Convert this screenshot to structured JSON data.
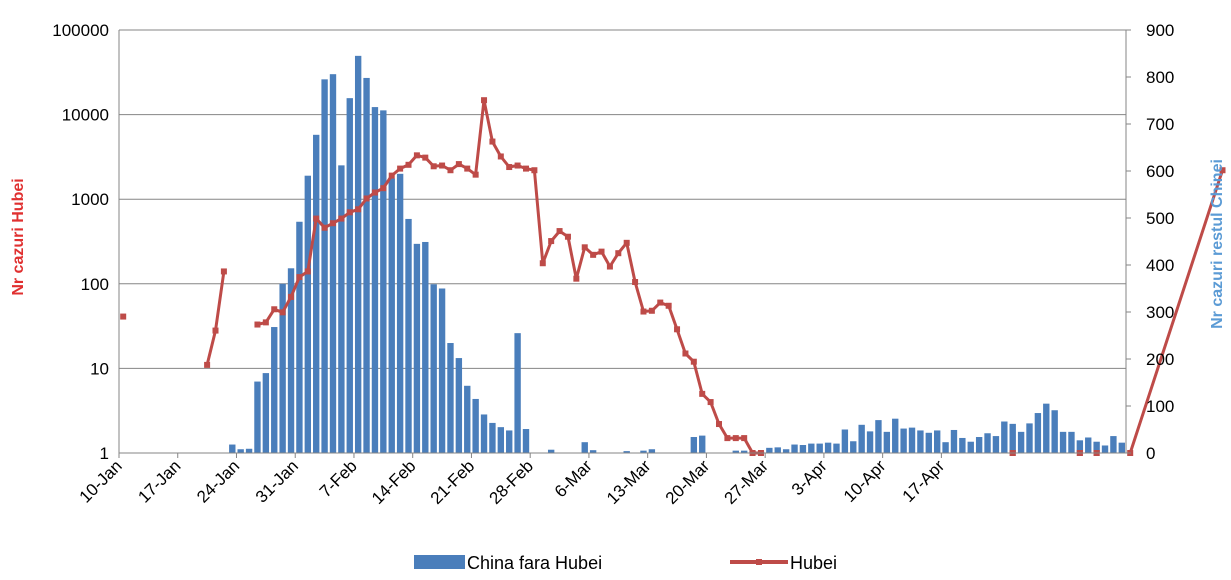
{
  "chart_data": {
    "type": "bar+line",
    "title": "",
    "y_left_label": "Nr cazuri Hubei",
    "y_right_label": "Nr cazuri restul Chinei",
    "y_left_scale": "log",
    "y_left_ticks": [
      "1",
      "10",
      "100",
      "1000",
      "10000",
      "100000"
    ],
    "y_right_ticks": [
      "0",
      "100",
      "200",
      "300",
      "400",
      "500",
      "600",
      "700",
      "800",
      "900"
    ],
    "y_right_lim": [
      0,
      900
    ],
    "x_ticks": [
      "10-Jan",
      "17-Jan",
      "24-Jan",
      "31-Jan",
      "7-Feb",
      "14-Feb",
      "21-Feb",
      "28-Feb",
      "6-Mar",
      "13-Mar",
      "20-Mar",
      "27-Mar",
      "3-Apr",
      "10-Apr",
      "17-Apr"
    ],
    "x_start_label": "10-Jan",
    "grid": "horizontal",
    "legend_position": "bottom",
    "colors": {
      "bars": "#4a7ebb",
      "line": "#be4b48",
      "left_axis_label": "#e03030",
      "right_axis_label": "#5b9bd5"
    },
    "series": [
      {
        "name": "China fara Hubei",
        "type": "bar",
        "axis": "right",
        "values": [
          0,
          0,
          0,
          0,
          0,
          0,
          0,
          0,
          0,
          0,
          0,
          0,
          0,
          18,
          8,
          9,
          152,
          170,
          268,
          360,
          393,
          492,
          590,
          677,
          795,
          806,
          612,
          755,
          845,
          798,
          736,
          729,
          584,
          594,
          498,
          445,
          449,
          359,
          350,
          234,
          202,
          143,
          115,
          82,
          64,
          55,
          48,
          255,
          51,
          0,
          0,
          7,
          0,
          0,
          0,
          23,
          6,
          0,
          0,
          0,
          4,
          0,
          5,
          8,
          0,
          0,
          0,
          0,
          34,
          37,
          0,
          0,
          0,
          5,
          5,
          4,
          3,
          11,
          12,
          8,
          18,
          17,
          20,
          20,
          22,
          20,
          50,
          25,
          60,
          46,
          70,
          45,
          73,
          52,
          54,
          48,
          43,
          48,
          23,
          49,
          32,
          24,
          34,
          42,
          36,
          67,
          62,
          45,
          63,
          85,
          105,
          91,
          45,
          45,
          27,
          33,
          24,
          16,
          36,
          22
        ]
      },
      {
        "name": "Hubei",
        "type": "line",
        "axis": "left",
        "values": [
          41,
          null,
          null,
          null,
          null,
          null,
          null,
          null,
          null,
          null,
          null,
          null,
          null,
          null,
          null,
          null,
          null,
          null,
          null,
          null,
          null,
          null,
          null,
          null,
          null,
          null,
          null,
          null,
          null,
          null,
          null,
          null,
          null,
          null,
          null,
          null,
          null,
          null,
          null,
          null,
          null,
          null,
          null,
          null,
          null,
          null,
          null,
          null,
          null,
          null,
          null,
          null,
          null,
          null,
          null,
          null,
          null,
          null,
          null,
          null,
          null,
          null,
          null,
          null,
          null,
          null,
          null,
          null,
          null,
          null,
          null,
          null,
          null,
          null,
          null,
          null,
          null,
          null,
          null,
          null,
          null,
          null,
          null,
          null,
          null,
          null,
          null,
          null,
          null,
          null,
          null,
          null,
          null,
          null,
          null,
          null,
          null,
          null,
          null,
          null,
          null,
          null,
          null,
          null,
          null,
          null,
          null,
          null,
          null,
          null,
          null,
          null,
          null,
          null,
          null,
          null,
          null,
          null,
          null,
          null
        ]
      }
    ]
  },
  "legend": {
    "bars_label": "China fara Hubei",
    "line_label": "Hubei"
  }
}
